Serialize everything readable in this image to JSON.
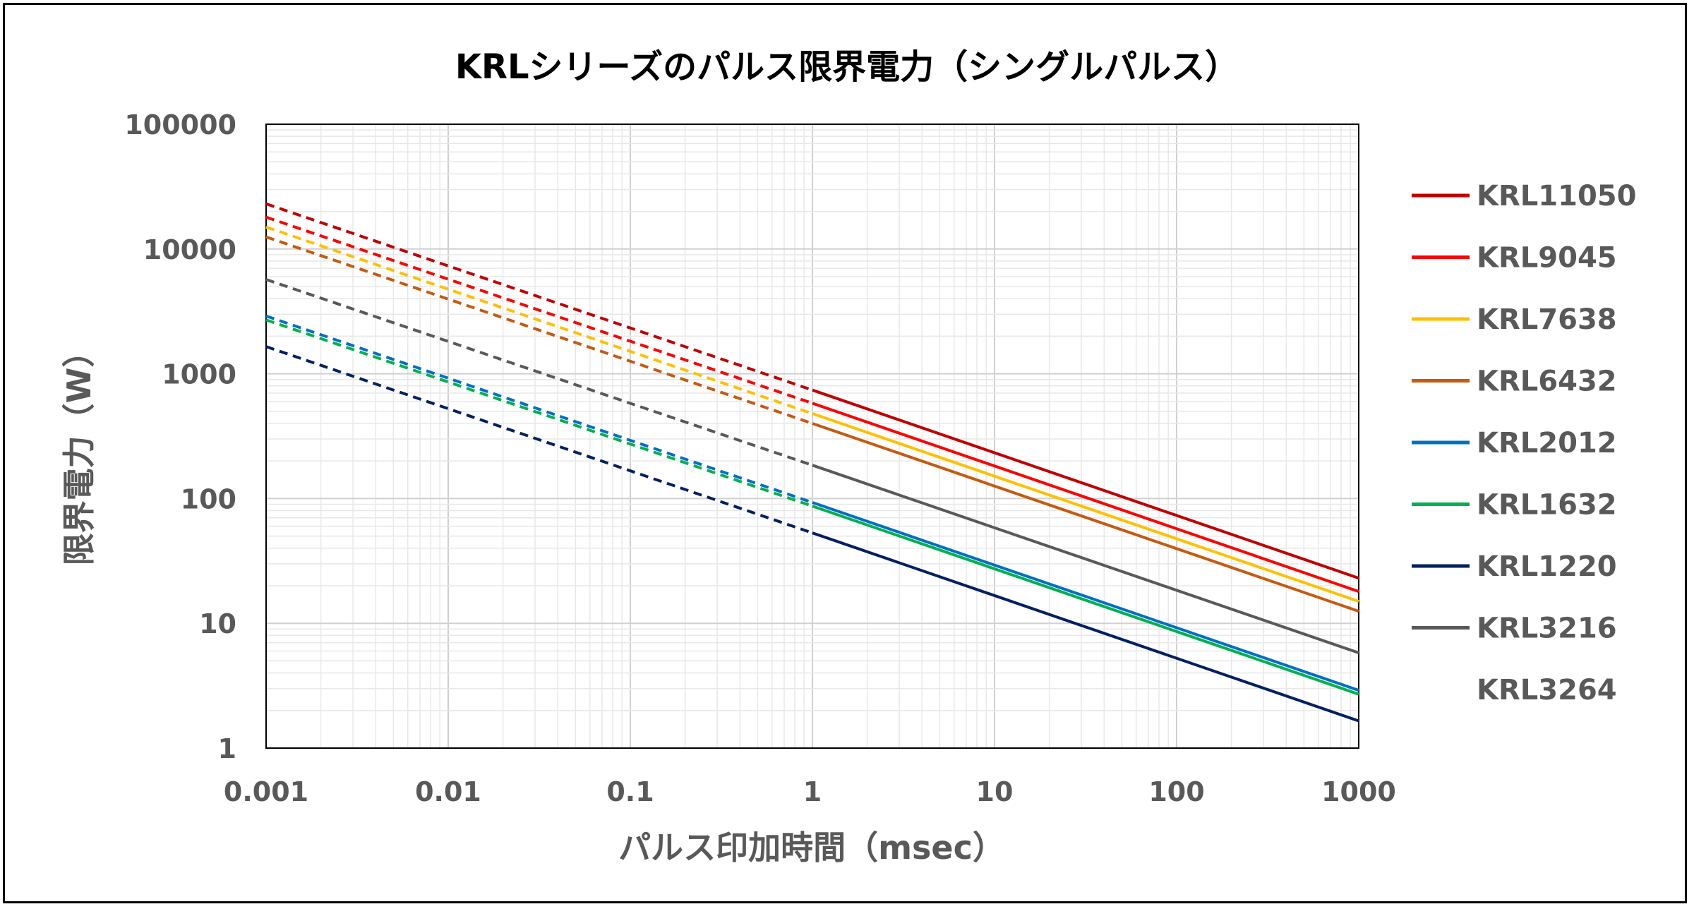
{
  "chart_data": {
    "type": "line",
    "title": "KRLシリーズのパルス限界電力（シングルパルス）",
    "xlabel": "パルス印加時間（msec）",
    "ylabel": "限界電力（W）",
    "x_scale": "log",
    "y_scale": "log",
    "xlim": [
      0.001,
      1000
    ],
    "ylim": [
      1,
      100000
    ],
    "x_ticks": [
      "0.001",
      "0.01",
      "0.1",
      "1",
      "10",
      "100",
      "1000"
    ],
    "y_ticks": [
      "1",
      "10",
      "100",
      "1000",
      "10000",
      "100000"
    ],
    "grid": true,
    "legend_position": "right",
    "dashed_range": [
      0.001,
      1
    ],
    "solid_range": [
      1,
      1000
    ],
    "series": [
      {
        "name": "KRL11050",
        "color": "#C00000",
        "x": [
          0.001,
          1,
          1000
        ],
        "y": [
          23000,
          740,
          23
        ]
      },
      {
        "name": "KRL9045",
        "color": "#FF0000",
        "x": [
          0.001,
          1,
          1000
        ],
        "y": [
          18000,
          580,
          18
        ]
      },
      {
        "name": "KRL7638",
        "color": "#FFC000",
        "x": [
          0.001,
          1,
          1000
        ],
        "y": [
          15000,
          480,
          15
        ]
      },
      {
        "name": "KRL6432",
        "color": "#C55A11",
        "x": [
          0.001,
          1,
          1000
        ],
        "y": [
          12500,
          400,
          12.5
        ]
      },
      {
        "name": "KRL2012",
        "color": "#0070C0",
        "x": [
          0.001,
          1,
          1000
        ],
        "y": [
          2900,
          93,
          2.9
        ]
      },
      {
        "name": "KRL1632",
        "color": "#00B050",
        "x": [
          0.001,
          1,
          1000
        ],
        "y": [
          2700,
          87,
          2.7
        ]
      },
      {
        "name": "KRL1220",
        "color": "#002060",
        "x": [
          0.001,
          1,
          1000
        ],
        "y": [
          1650,
          53,
          1.65
        ]
      },
      {
        "name": "KRL3216",
        "color": "#595959",
        "x": [
          0.001,
          1,
          1000
        ],
        "y": [
          5700,
          185,
          5.8
        ]
      },
      {
        "name": "KRL3264",
        "color": "none",
        "x": [],
        "y": []
      }
    ]
  }
}
